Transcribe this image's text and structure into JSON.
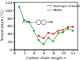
{
  "chart_data": {
    "type": "line",
    "x_label": "Carbon chain length n",
    "y_label": "Temperature (°C)",
    "annotations": [
      "CₙH₂ₙ₊₁",
      "CN"
    ],
    "x": [
      1,
      2,
      3,
      4,
      5,
      6,
      7,
      8,
      9,
      10,
      11,
      12
    ],
    "series": [
      {
        "name": "Isotropic transition",
        "color": "#d62728",
        "marker": "circle",
        "values": [
          null,
          null,
          null,
          null,
          35,
          29,
          43,
          40,
          48,
          50,
          57,
          58
        ]
      },
      {
        "name": "Melts",
        "color": "#2ca02c",
        "marker": "square",
        "values": [
          109,
          75,
          71,
          48,
          24,
          14,
          30,
          21,
          42,
          44,
          53,
          48
        ]
      }
    ],
    "xlim": [
      0,
      13
    ],
    "xticks": [
      0,
      2,
      4,
      6,
      8,
      10,
      12
    ],
    "ylim": [
      0,
      120
    ],
    "yticks": [
      0,
      20,
      40,
      60,
      80,
      100,
      120
    ],
    "legend": "top-right"
  }
}
